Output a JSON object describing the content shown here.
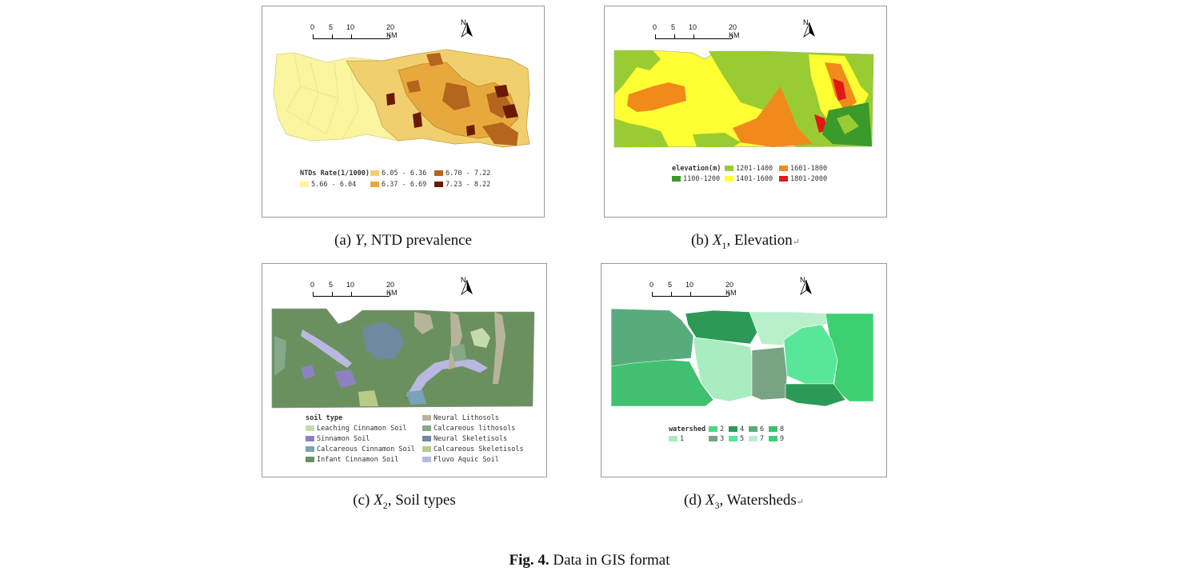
{
  "scalebar": {
    "ticks": [
      "0",
      "5",
      "10",
      "20 KM"
    ]
  },
  "north": "N",
  "panels": {
    "a": {
      "caption_prefix": "(a) ",
      "caption_var": "Y",
      "caption_text": ", NTD prevalence",
      "legend_title": "NTDs Rate(1/1000)",
      "legend": [
        {
          "label": "6.05 - 6.36",
          "color": "#f2cf6e"
        },
        {
          "label": "6.70 - 7.22",
          "color": "#b5651d"
        },
        {
          "label": "5.66 - 6.04",
          "color": "#fbf5a0"
        },
        {
          "label": "6.37 - 6.69",
          "color": "#e8a93c"
        },
        {
          "label": "7.23 - 8.22",
          "color": "#6b1a05"
        }
      ]
    },
    "b": {
      "caption_prefix": "(b) ",
      "caption_var": "X",
      "caption_sub": "1",
      "caption_text": ", Elevation",
      "legend_title": "elevation(m)",
      "legend": [
        {
          "label": "1201-1400",
          "color": "#99cc33"
        },
        {
          "label": "1601-1800",
          "color": "#f08a1a"
        },
        {
          "label": "1100-1200",
          "color": "#3a9a2a"
        },
        {
          "label": "1401-1600",
          "color": "#ffff33"
        },
        {
          "label": "1801-2000",
          "color": "#e01818"
        }
      ]
    },
    "c": {
      "caption_prefix": "(c) ",
      "caption_var": "X",
      "caption_sub": "2",
      "caption_text": ", Soil types",
      "legend_title": "soil type",
      "legend": [
        {
          "label": "Neural Lithosols",
          "color": "#b8b49a"
        },
        {
          "label": "Leaching Cinnamon Soil",
          "color": "#c6dca8"
        },
        {
          "label": "Calcareous lithosols",
          "color": "#84a888"
        },
        {
          "label": "Sinnamon Soil",
          "color": "#8c82c0"
        },
        {
          "label": "Neural Skeletisols",
          "color": "#7088a0"
        },
        {
          "label": "Calcareous Cinnamon Soil",
          "color": "#7aa2b8"
        },
        {
          "label": "Calcareous Skeletisols",
          "color": "#b8cc88"
        },
        {
          "label": "Infant Cinnamon Soil",
          "color": "#6b9060"
        },
        {
          "label": "Fluvo Aquic Soil",
          "color": "#b8b8e0"
        }
      ]
    },
    "d": {
      "caption_prefix": "(d) ",
      "caption_var": "X",
      "caption_sub": "3",
      "caption_text": ", Watersheds",
      "legend_title": "watershed",
      "legend": [
        {
          "label": "2",
          "color": "#48d884"
        },
        {
          "label": "4",
          "color": "#2a9a56"
        },
        {
          "label": "6",
          "color": "#58ac7c"
        },
        {
          "label": "8",
          "color": "#40c070"
        },
        {
          "label": "1",
          "color": "#a8ecc0"
        },
        {
          "label": "3",
          "color": "#78a484"
        },
        {
          "label": "5",
          "color": "#58e698"
        },
        {
          "label": "7",
          "color": "#b8f0cc"
        },
        {
          "label": "9",
          "color": "#3cd070"
        }
      ]
    }
  },
  "figure": {
    "label": "Fig. 4.",
    "text": " Data in GIS format"
  },
  "return_mark": "↵"
}
